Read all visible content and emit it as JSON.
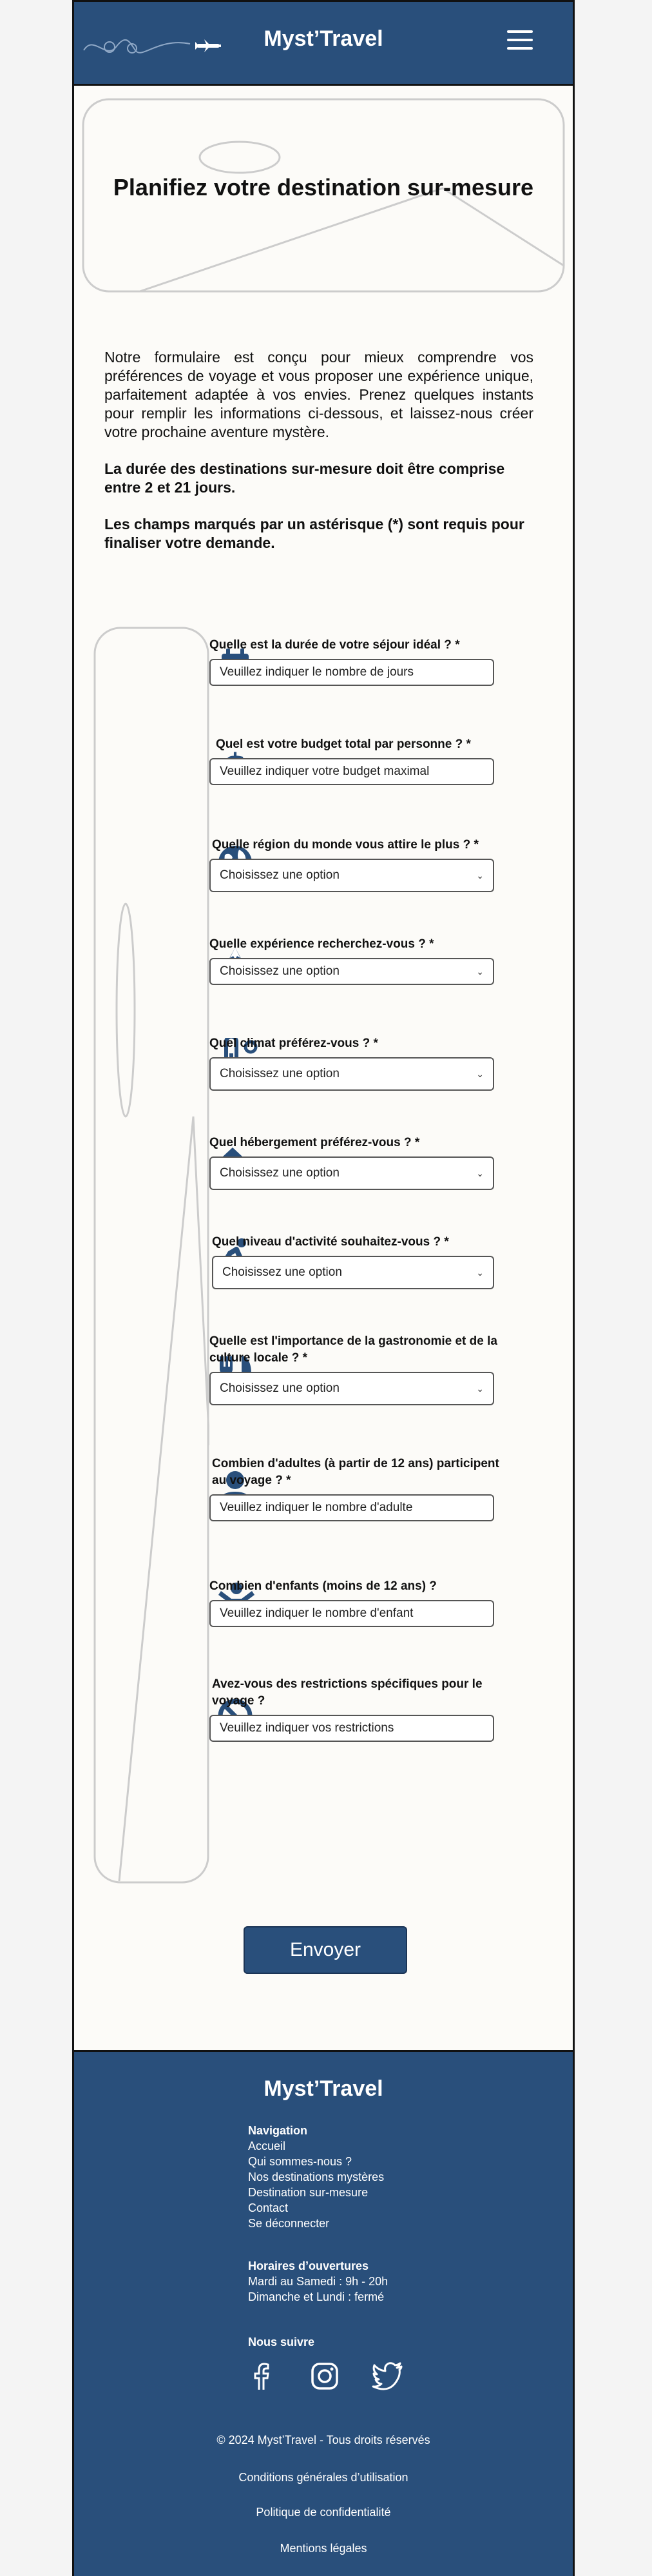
{
  "header": {
    "brand": "Myst’Travel",
    "menu_icon": "hamburger-menu-icon",
    "logo_icon": "airplane-icon"
  },
  "hero": {
    "title": "Planifiez votre destination sur-mesure"
  },
  "intro": {
    "paragraph": "Notre formulaire est conçu pour mieux comprendre vos préférences de voyage et vous proposer une expérience unique, parfaitement adaptée à vos envies. Prenez quelques instants pour remplir les informations ci-dessous, et laissez-nous créer votre prochaine aventure mystère.",
    "duration_note": "La durée des destinations sur-mesure doit être comprise entre 2 et 21 jours.",
    "required_note": "Les champs marqués par un astérisque (*) sont requis pour finaliser votre demande."
  },
  "form": {
    "questions": [
      {
        "label": "Quelle est la durée de votre séjour idéal ? *",
        "placeholder": "Veuillez indiquer le nombre de jours",
        "icon": "calendar-icon"
      },
      {
        "label": "Quel est votre budget total par personne ? *",
        "placeholder": "Veuillez indiquer votre budget maximal",
        "icon": "dollar-icon"
      },
      {
        "label": "Quelle région du monde vous attire le plus ? *",
        "value": "Choisissez une option",
        "icon": "globe-icon"
      },
      {
        "label": "Quelle expérience recherchez-vous ? *",
        "value": "Choisissez une option",
        "icon": "mountain-icon"
      },
      {
        "label": "Quel climat préférez-vous ? *",
        "value": "Choisissez une option",
        "icon": "thermometer-icon"
      },
      {
        "label": "Quel hébergement préférez-vous ? *",
        "value": "Choisissez une option",
        "icon": "house-icon"
      },
      {
        "label": "Quel niveau d'activité souhaitez-vous ? *",
        "value": "Choisissez une option",
        "icon": "running-person-icon"
      },
      {
        "label": "Quelle est l'importance de la gastronomie et de la culture locale ? *",
        "value": "Choisissez une option",
        "icon": "utensils-icon"
      },
      {
        "label": "Combien d'adultes (à partir de 12 ans) participent au voyage ? *",
        "placeholder": "Veuillez indiquer le nombre d'adulte",
        "icon": "adult-person-icon"
      },
      {
        "label": "Combien d'enfants (moins de 12 ans) ?",
        "placeholder": "Veuillez indiquer le nombre d'enfant",
        "icon": "child-icon"
      },
      {
        "label": "Avez-vous des restrictions spécifiques pour le voyage ?",
        "placeholder": "Veuillez indiquer vos restrictions",
        "icon": "ban-icon"
      }
    ],
    "submit_label": "Envoyer"
  },
  "footer": {
    "brand": "Myst’Travel",
    "nav_title": "Navigation",
    "nav_links": [
      "Accueil",
      "Qui sommes-nous ?",
      "Nos destinations mystères",
      "Destination sur-mesure",
      "Contact",
      "Se déconnecter"
    ],
    "hours_title": "Horaires d’ouvertures",
    "hours_lines": [
      "Mardi au Samedi : 9h - 20h",
      "Dimanche et Lundi : fermé"
    ],
    "follow_title": "Nous suivre",
    "social_icons": [
      "facebook-icon",
      "instagram-icon",
      "twitter-icon"
    ],
    "copyright": "© 2024 Myst’Travel - Tous droits réservés",
    "legal_links": [
      "Conditions générales d’utilisation",
      "Politique de confidentialité",
      "Mentions légales"
    ]
  },
  "colors": {
    "primary": "#294f7b",
    "background": "#fcfbf8"
  }
}
